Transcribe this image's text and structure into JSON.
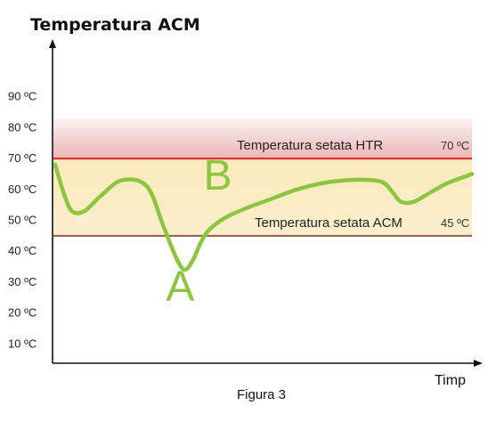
{
  "chart_data": {
    "type": "line",
    "title": "Temperatura ACM",
    "xlabel": "Timp",
    "ylabel": "",
    "caption": "Figura 3",
    "ylim": [
      0,
      100
    ],
    "yticks": [
      {
        "value": 10,
        "label": "10 ºC"
      },
      {
        "value": 20,
        "label": "20 ºC"
      },
      {
        "value": 30,
        "label": "30 ºC"
      },
      {
        "value": 40,
        "label": "40 ºC"
      },
      {
        "value": 50,
        "label": "50 ºC"
      },
      {
        "value": 60,
        "label": "60 ºC"
      },
      {
        "value": 70,
        "label": "70 ºC"
      },
      {
        "value": 80,
        "label": "80 ºC"
      },
      {
        "value": 90,
        "label": "90 ºC"
      }
    ],
    "reference_lines": [
      {
        "value": 70,
        "label": "Temperatura setata HTR",
        "value_label": "70 ºC",
        "color": "#d9252a"
      },
      {
        "value": 45,
        "label": "Temperatura setata ACM",
        "value_label": "45 ºC",
        "color": "#9a5a4a"
      }
    ],
    "bands": [
      {
        "from": 70,
        "to": 83,
        "color": "#e8a8a8"
      },
      {
        "from": 45,
        "to": 70,
        "color": "#fbe8b8"
      }
    ],
    "series": [
      {
        "color": "#8cc63f",
        "x": [
          0,
          2,
          4,
          7,
          11,
          16,
          22,
          26,
          29,
          31,
          33,
          35,
          37,
          41,
          46,
          52,
          58,
          64,
          70,
          76,
          79,
          81,
          83,
          86,
          90,
          94,
          98,
          100
        ],
        "y": [
          68,
          59,
          53,
          53,
          58,
          63,
          61,
          48,
          38,
          34,
          37,
          43,
          47,
          51,
          54,
          57,
          60,
          62,
          63,
          63,
          62,
          59,
          56,
          56,
          59,
          62,
          64,
          65
        ]
      }
    ],
    "annotations": [
      {
        "text": "A",
        "x": 30,
        "y": 24
      },
      {
        "text": "B",
        "x": 39,
        "y": 60
      }
    ],
    "grid": false,
    "legend": "none"
  }
}
